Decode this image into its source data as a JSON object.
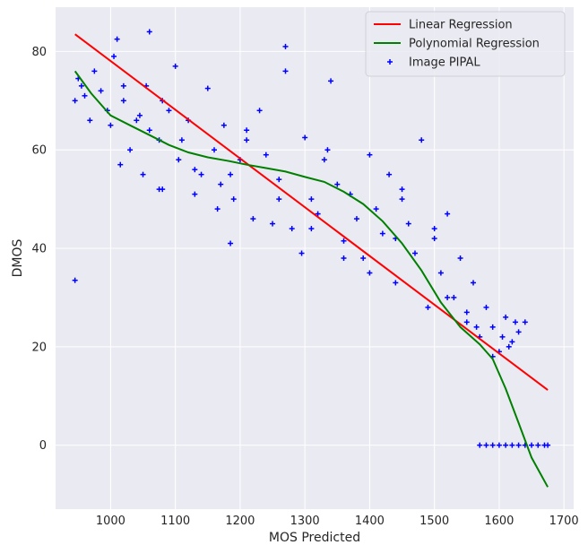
{
  "chart_data": {
    "type": "scatter",
    "xlabel": "MOS Predicted",
    "ylabel": "DMOS",
    "xlim": [
      915,
      1715
    ],
    "ylim": [
      -13,
      89
    ],
    "x_ticks": [
      1000,
      1100,
      1200,
      1300,
      1400,
      1500,
      1600,
      1700
    ],
    "y_ticks": [
      0,
      20,
      40,
      60,
      80
    ],
    "grid": true,
    "legend_position": "top-right",
    "series": [
      {
        "name": "Linear Regression",
        "kind": "line",
        "color": "#ff0000",
        "x": [
          945,
          1675
        ],
        "y": [
          83.5,
          11.2
        ]
      },
      {
        "name": "Polynomial Regression",
        "kind": "line",
        "color": "#008000",
        "x": [
          945,
          970,
          1000,
          1030,
          1060,
          1090,
          1120,
          1150,
          1180,
          1210,
          1240,
          1270,
          1300,
          1330,
          1360,
          1390,
          1420,
          1450,
          1480,
          1510,
          1540,
          1570,
          1590,
          1610,
          1630,
          1650,
          1675
        ],
        "y": [
          76.0,
          71.5,
          67.0,
          65.0,
          63.0,
          61.0,
          59.5,
          58.5,
          57.8,
          57.0,
          56.3,
          55.6,
          54.5,
          53.5,
          51.5,
          49.0,
          45.5,
          41.0,
          35.5,
          29.0,
          24.0,
          20.5,
          17.5,
          11.5,
          4.5,
          -2.5,
          -8.5
        ]
      },
      {
        "name": "Image PIPAL",
        "kind": "scatter",
        "color": "#0000ff",
        "marker": "+",
        "x": [
          945,
          950,
          955,
          960,
          968,
          975,
          985,
          995,
          1005,
          1010,
          1015,
          1020,
          1030,
          1040,
          1050,
          1055,
          1060,
          1075,
          1080,
          1090,
          1100,
          1105,
          1110,
          1120,
          1130,
          1140,
          1150,
          1160,
          1165,
          1175,
          1185,
          1190,
          1200,
          1210,
          1220,
          1230,
          1240,
          1250,
          1260,
          1270,
          1280,
          1295,
          1300,
          1310,
          1320,
          1330,
          1340,
          1350,
          1360,
          1370,
          1380,
          1390,
          1400,
          1410,
          1420,
          1430,
          1440,
          1450,
          1460,
          1470,
          1480,
          1490,
          1500,
          1510,
          1520,
          1530,
          1540,
          1550,
          1560,
          1570,
          1580,
          1590,
          1600,
          1610,
          1620,
          1630,
          1640,
          1570,
          1580,
          1590,
          1600,
          1610,
          1620,
          1630,
          1640,
          1650,
          1660,
          1670,
          1675,
          945,
          1045,
          1075,
          1185,
          1270,
          1335,
          1450,
          1000,
          1060,
          1130,
          1210,
          1310,
          1400,
          1500,
          1550,
          1020,
          1080,
          1170,
          1260,
          1360,
          1440,
          1520,
          1565,
          1590,
          1605,
          1615,
          1625
        ],
        "y": [
          33.5,
          74.5,
          73.0,
          71.0,
          66.0,
          76.0,
          72.0,
          68.0,
          79.0,
          82.5,
          57.0,
          73.0,
          60.0,
          66.0,
          55.0,
          73.0,
          64.0,
          52.0,
          70.0,
          68.0,
          77.0,
          58.0,
          62.0,
          66.0,
          51.0,
          55.0,
          72.5,
          60.0,
          48.0,
          65.0,
          41.0,
          50.0,
          58.0,
          62.0,
          46.0,
          68.0,
          59.0,
          45.0,
          54.0,
          76.0,
          44.0,
          39.0,
          62.5,
          50.0,
          47.0,
          58.0,
          74.0,
          53.0,
          41.5,
          51.0,
          46.0,
          38.0,
          59.0,
          48.0,
          43.0,
          55.0,
          33.0,
          50.0,
          45.0,
          39.0,
          62.0,
          28.0,
          42.0,
          35.0,
          47.0,
          30.0,
          38.0,
          25.0,
          33.0,
          22.0,
          28.0,
          24.0,
          19.0,
          26.0,
          21.0,
          23.0,
          25.0,
          0,
          0,
          0,
          0,
          0,
          0,
          0,
          0,
          0,
          0,
          0,
          0,
          70.0,
          67.0,
          62.0,
          55.0,
          81.0,
          60.0,
          52.0,
          65.0,
          84.0,
          56.0,
          64.0,
          44.0,
          35.0,
          44.0,
          27.0,
          70.0,
          52.0,
          53.0,
          50.0,
          38.0,
          42.0,
          30.0,
          24.0,
          18.0,
          22.0,
          20.0,
          25.0
        ]
      }
    ]
  }
}
